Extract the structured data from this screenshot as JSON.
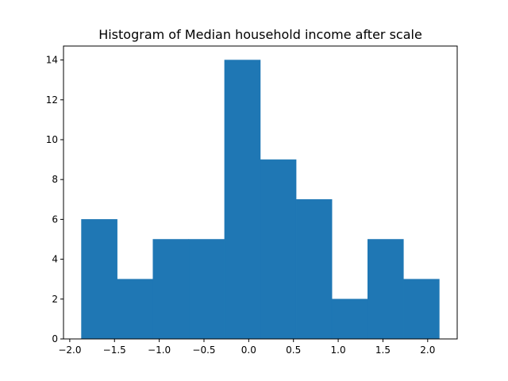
{
  "chart_data": {
    "type": "bar",
    "title": "Histogram of Median household income after scale",
    "xlabel": "",
    "ylabel": "",
    "bin_edges": [
      -1.87,
      -1.47,
      -1.07,
      -0.67,
      -0.27,
      0.13,
      0.53,
      0.93,
      1.33,
      1.73,
      2.13
    ],
    "values": [
      6,
      3,
      5,
      5,
      14,
      9,
      7,
      2,
      5,
      3
    ],
    "xlim": [
      -2.07,
      2.33
    ],
    "ylim": [
      0,
      14.7
    ],
    "xticks": [
      -2.0,
      -1.5,
      -1.0,
      -0.5,
      0.0,
      0.5,
      1.0,
      1.5,
      2.0
    ],
    "xtick_labels": [
      "−2.0",
      "−1.5",
      "−1.0",
      "−0.5",
      "0.0",
      "0.5",
      "1.0",
      "1.5",
      "2.0"
    ],
    "yticks": [
      0,
      2,
      4,
      6,
      8,
      10,
      12,
      14
    ],
    "ytick_labels": [
      "0",
      "2",
      "4",
      "6",
      "8",
      "10",
      "12",
      "14"
    ],
    "bar_color": "#1f77b4",
    "grid": false,
    "legend": "none"
  }
}
